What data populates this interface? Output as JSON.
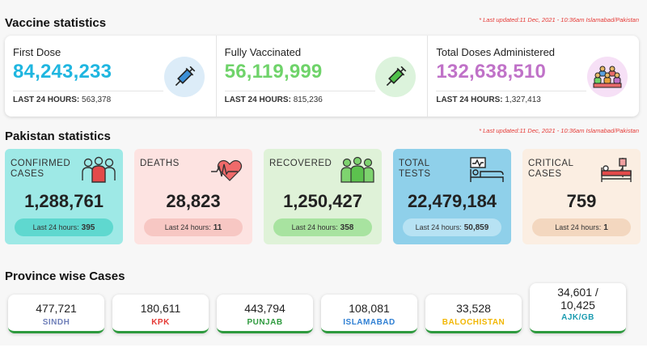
{
  "vaccine": {
    "title": "Vaccine statistics",
    "updated": "* Last updated:11 Dec, 2021 - 10:36am Islamabad/Pakistan",
    "items": [
      {
        "label": "First Dose",
        "value": "84,243,233",
        "last_label": "LAST 24 HOURS:",
        "last_value": "563,378",
        "color": "#1fb6e0",
        "icon": "syringe-icon"
      },
      {
        "label": "Fully Vaccinated",
        "value": "56,119,999",
        "last_label": "LAST 24 HOURS:",
        "last_value": "815,236",
        "color": "#6fd36a",
        "icon": "syringe-icon"
      },
      {
        "label": "Total Doses Administered",
        "value": "132,638,510",
        "last_label": "LAST 24 HOURS:",
        "last_value": "1,327,413",
        "color": "#c072c8",
        "icon": "people-group-icon"
      }
    ]
  },
  "pakistan": {
    "title": "Pakistan statistics",
    "updated": "* Last updated:11 Dec, 2021 - 10:36am Islamabad/Pakistan",
    "last_label": "Last 24 hours:",
    "items": [
      {
        "label": "CONFIRMED CASES",
        "value": "1,288,761",
        "last": "395",
        "bg": "#9ee9e6",
        "pill": "#5fd8cf",
        "icon": "patients-icon"
      },
      {
        "label": "DEATHS",
        "value": "28,823",
        "last": "11",
        "bg": "#fde3e1",
        "pill": "#f7c7c3",
        "icon": "heartbeat-icon"
      },
      {
        "label": "RECOVERED",
        "value": "1,250,427",
        "last": "358",
        "bg": "#dff2d8",
        "pill": "#a8e3a0",
        "icon": "recovered-people-icon"
      },
      {
        "label": "TOTAL TESTS",
        "value": "22,479,184",
        "last": "50,859",
        "bg": "#8fd0ea",
        "pill": "#b7e2f3",
        "icon": "hospital-bed-monitor-icon"
      },
      {
        "label": "CRITICAL CASES",
        "value": "759",
        "last": "1",
        "bg": "#fbeee2",
        "pill": "#f3d7bf",
        "icon": "iv-bed-icon"
      }
    ]
  },
  "province": {
    "title": "Province wise Cases",
    "items": [
      {
        "value": "477,721",
        "name": "SINDH",
        "color": "#6f7fb9"
      },
      {
        "value": "180,611",
        "name": "KPK",
        "color": "#e53935"
      },
      {
        "value": "443,794",
        "name": "PUNJAB",
        "color": "#2e9a3e"
      },
      {
        "value": "108,081",
        "name": "ISLAMABAD",
        "color": "#2f7fd3"
      },
      {
        "value": "33,528",
        "name": "BALOCHISTAN",
        "color": "#f2b705"
      },
      {
        "value": "34,601 /",
        "value2": "10,425",
        "name": "AJK/GB",
        "color": "#1a9bb0"
      }
    ]
  }
}
